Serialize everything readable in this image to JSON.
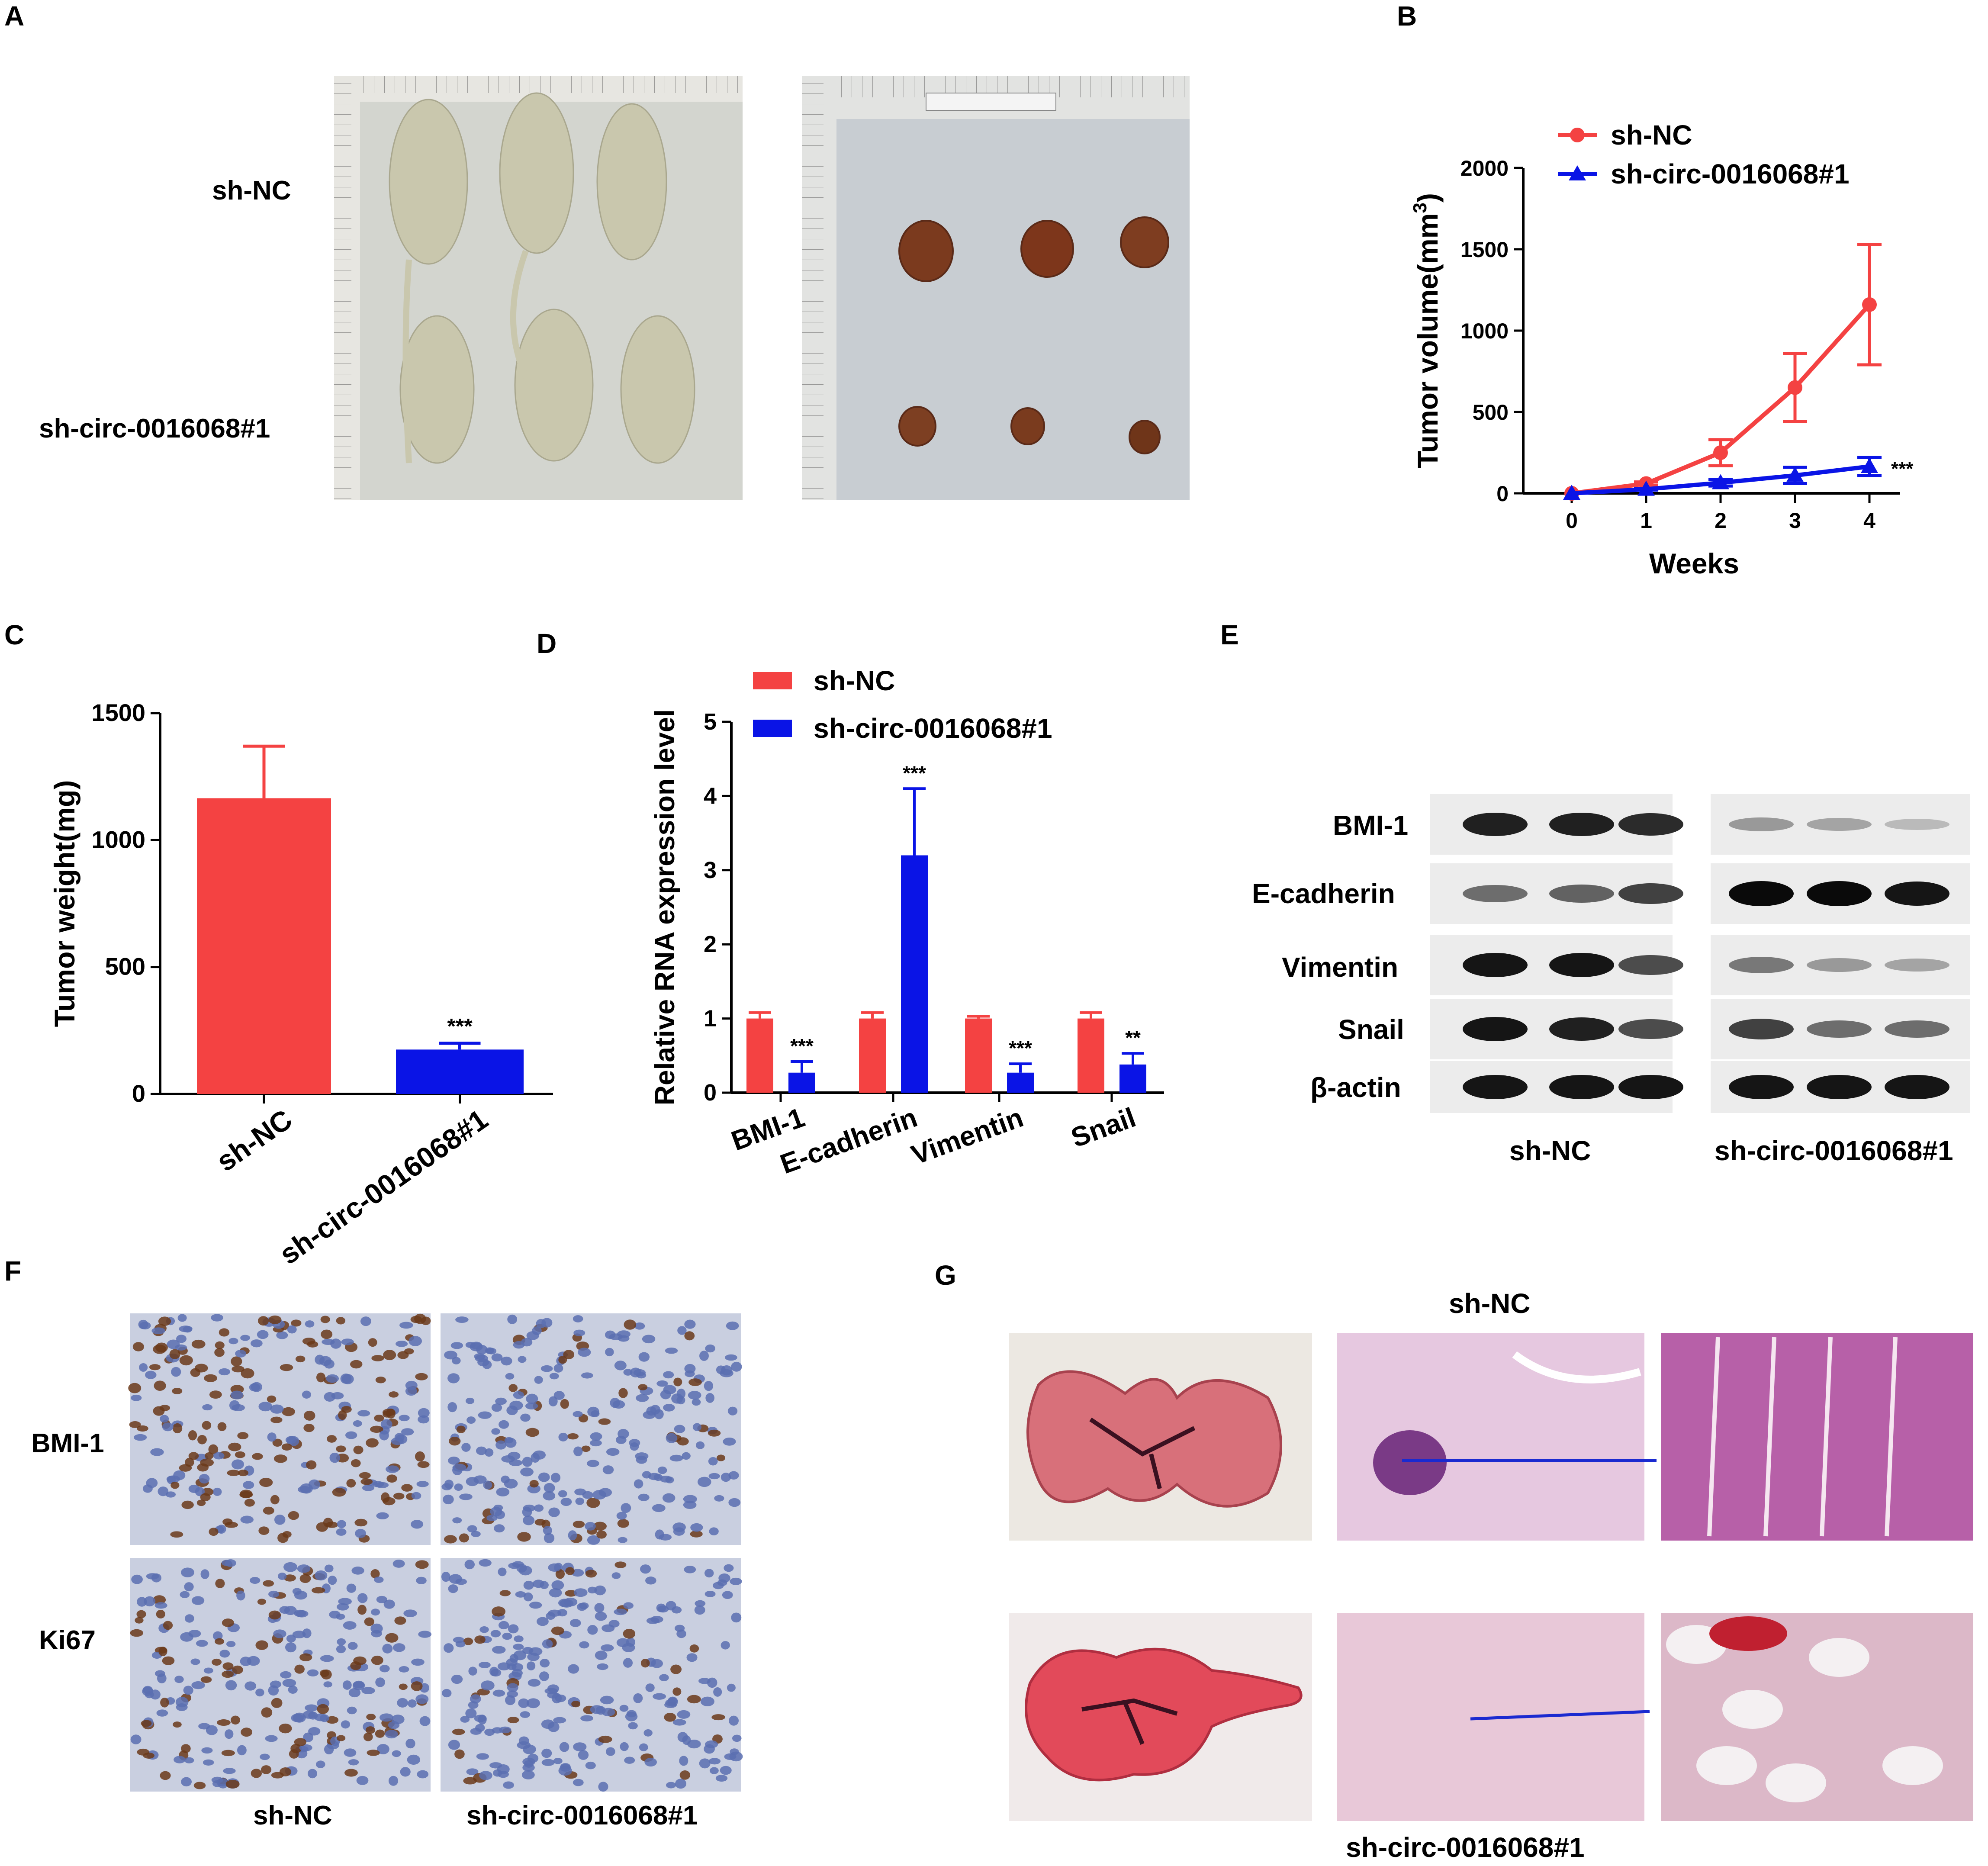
{
  "panels": {
    "A": {
      "letter": "A",
      "row_labels": [
        "sh-NC",
        "sh-circ-0016068#1"
      ]
    },
    "B": {
      "letter": "B"
    },
    "C": {
      "letter": "C"
    },
    "D": {
      "letter": "D"
    },
    "E": {
      "letter": "E",
      "proteins": [
        "BMI-1",
        "E-cadherin",
        "Vimentin",
        "Snail",
        "β-actin"
      ],
      "groups": [
        "sh-NC",
        "sh-circ-0016068#1"
      ],
      "band_intensity": {
        "sh-NC": [
          [
            0.9,
            0.9,
            0.85
          ],
          [
            0.55,
            0.6,
            0.75
          ],
          [
            0.95,
            0.95,
            0.7
          ],
          [
            0.95,
            0.9,
            0.7
          ],
          [
            0.95,
            0.95,
            0.95
          ]
        ],
        "sh-circ-0016068#1": [
          [
            0.35,
            0.3,
            0.2
          ],
          [
            1.0,
            1.0,
            0.95
          ],
          [
            0.5,
            0.35,
            0.3
          ],
          [
            0.75,
            0.55,
            0.55
          ],
          [
            0.95,
            0.95,
            0.95
          ]
        ]
      }
    },
    "F": {
      "letter": "F",
      "row_labels": [
        "BMI-1",
        "Ki67"
      ],
      "col_labels": [
        "sh-NC",
        "sh-circ-0016068#1"
      ]
    },
    "G": {
      "letter": "G",
      "top_label": "sh-NC",
      "bottom_label": "sh-circ-0016068#1"
    }
  },
  "colors": {
    "shNC": "#f44242",
    "shCirc": "#0a14e6"
  },
  "chart_data": [
    {
      "panel": "B",
      "type": "line",
      "x": [
        0,
        1,
        2,
        3,
        4
      ],
      "series": [
        {
          "name": "sh-NC",
          "marker": "circle",
          "values": [
            0,
            60,
            250,
            650,
            1160
          ],
          "errors": [
            0,
            10,
            80,
            210,
            370
          ]
        },
        {
          "name": "sh-circ-0016068#1",
          "marker": "triangle",
          "values": [
            0,
            25,
            65,
            110,
            165
          ],
          "errors": [
            0,
            5,
            20,
            50,
            55
          ]
        }
      ],
      "xlabel": "Weeks",
      "ylabel": "Tumor volume(mm",
      "ylabel_sup": "3",
      "ylabel_close": ")",
      "ylim": [
        0,
        2000
      ],
      "yticks": [
        0,
        500,
        1000,
        1500,
        2000
      ],
      "xticks": [
        0,
        1,
        2,
        3,
        4
      ],
      "annotations": [
        {
          "text": "***",
          "x": 4,
          "y": 165
        }
      ],
      "legend": "top-left"
    },
    {
      "panel": "C",
      "type": "bar",
      "categories": [
        "sh-NC",
        "sh-circ-0016068#1"
      ],
      "values": [
        1165,
        175
      ],
      "errors": [
        205,
        25
      ],
      "ylabel": "Tumor weight(mg)",
      "ylim": [
        0,
        1500
      ],
      "yticks": [
        0,
        500,
        1000,
        1500
      ],
      "annotations": [
        {
          "text": "***",
          "category": "sh-circ-0016068#1"
        }
      ]
    },
    {
      "panel": "D",
      "type": "bar",
      "categories": [
        "BMI-1",
        "E-cadherin",
        "Vimentin",
        "Snail"
      ],
      "series": [
        {
          "name": "sh-NC",
          "values": [
            1.0,
            1.0,
            1.0,
            1.0
          ],
          "errors": [
            0.08,
            0.08,
            0.03,
            0.08
          ]
        },
        {
          "name": "sh-circ-0016068#1",
          "values": [
            0.27,
            3.2,
            0.27,
            0.38
          ],
          "errors": [
            0.15,
            0.9,
            0.12,
            0.15
          ]
        }
      ],
      "ylabel": "Relative RNA expression level",
      "ylim": [
        0,
        5
      ],
      "yticks": [
        0,
        1,
        2,
        3,
        4,
        5
      ],
      "annotations": [
        "***",
        "***",
        "***",
        "**"
      ],
      "legend": "top-left"
    }
  ]
}
